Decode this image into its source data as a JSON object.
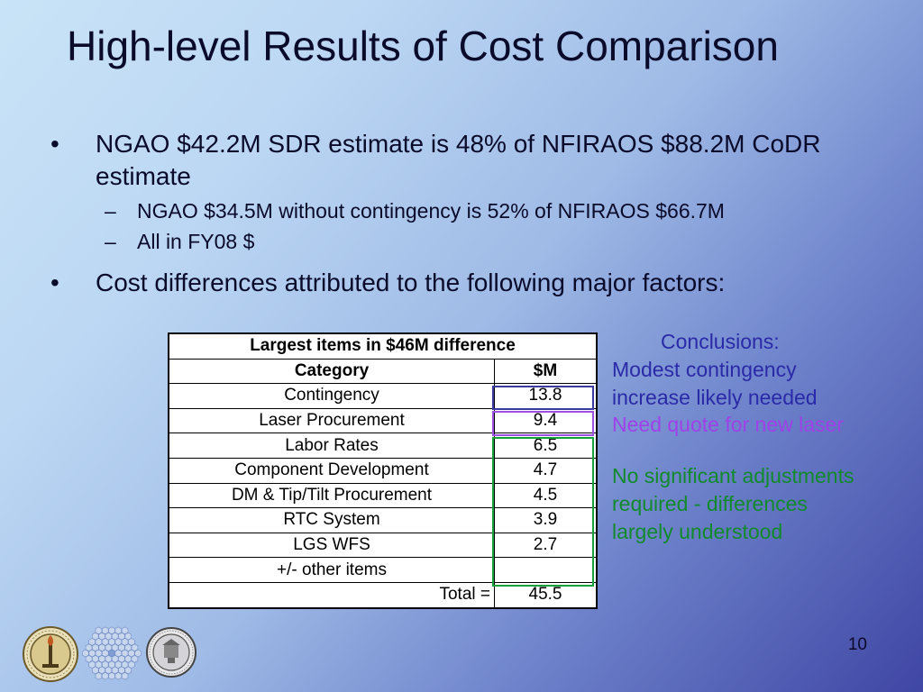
{
  "slide": {
    "title": "High-level Results of Cost Comparison",
    "bullets": [
      {
        "text": "NGAO $42.2M SDR estimate is 48% of NFIRAOS $88.2M CoDR estimate",
        "sub": [
          "NGAO $34.5M without contingency is 52% of NFIRAOS $66.7M",
          "All in FY08 $"
        ]
      },
      {
        "text": "Cost differences attributed to the following major factors:"
      }
    ],
    "bullet_marker": "•",
    "sub_marker": "–",
    "slide_number": "10"
  },
  "table": {
    "caption": "Largest items in $46M difference",
    "headers": [
      "Category",
      "$M"
    ],
    "rows": [
      {
        "category": "Contingency",
        "value": "13.8"
      },
      {
        "category": "Laser Procurement",
        "value": "9.4"
      },
      {
        "category": "Labor Rates",
        "value": "6.5"
      },
      {
        "category": "Component Development",
        "value": "4.7"
      },
      {
        "category": "DM & Tip/Tilt Procurement",
        "value": "4.5"
      },
      {
        "category": "RTC System",
        "value": "3.9"
      },
      {
        "category": "LGS WFS",
        "value": "2.7"
      },
      {
        "category": "+/- other items",
        "value": ""
      }
    ],
    "total_label": "Total =",
    "total_value": "45.5"
  },
  "conclusions": {
    "heading": "Conclusions:",
    "blue": [
      "Modest contingency",
      "increase likely needed"
    ],
    "purple": "Need quote for new laser",
    "green": [
      "No significant adjustments",
      "required - differences",
      "largely understood"
    ]
  },
  "colors": {
    "blue": "#2a2aa8",
    "purple": "#a040e8",
    "green": "#108a2a",
    "background_dark": "#3f46a4",
    "background_light": "#c9e3f7"
  },
  "logos": [
    "caltech-seal-icon",
    "segmented-mirror-icon",
    "university-of-california-seal-icon"
  ]
}
